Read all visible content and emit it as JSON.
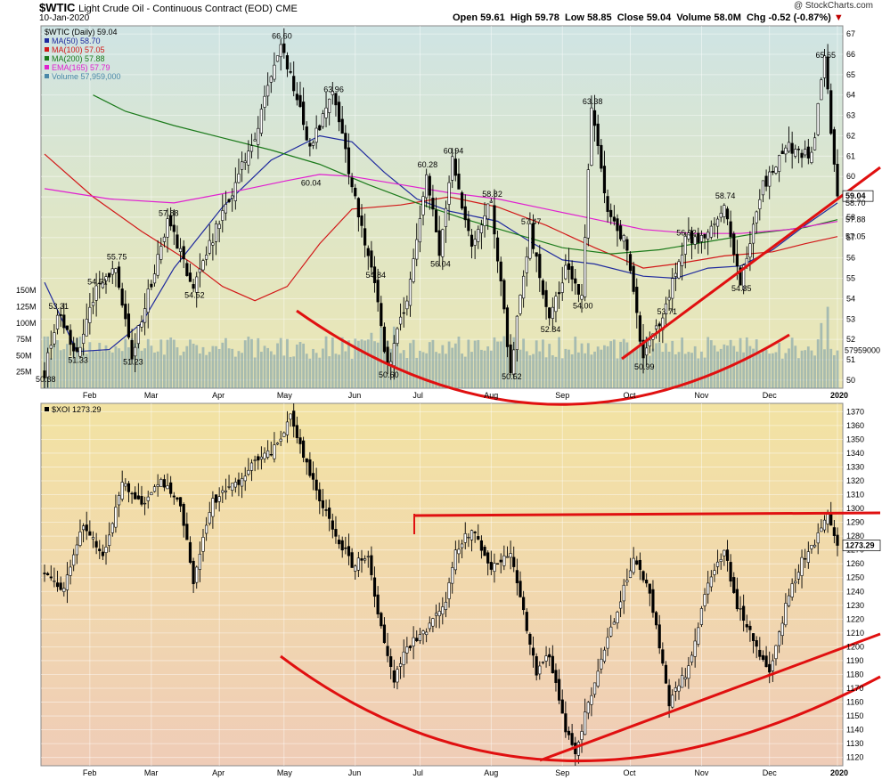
{
  "header": {
    "symbol": "$WTIC",
    "name": "Light Crude Oil - Continuous Contract (EOD)",
    "exchange": "CME",
    "date": "10-Jan-2020",
    "open": "Open 59.61",
    "high": "High 59.78",
    "low": "Low 58.85",
    "close": "Close 59.04",
    "volume": "Volume 58.0M",
    "chg": "Chg -0.52 (-0.87%)",
    "chg_marker": "▼",
    "brand": "@ StockCharts.com"
  },
  "chart_data": [
    {
      "type": "candlestick",
      "title": "$WTIC (Daily) 59.04",
      "legend": [
        {
          "text": "MA(50) 58.70",
          "color": "#1f2a9e"
        },
        {
          "text": "MA(100) 57.05",
          "color": "#d21919"
        },
        {
          "text": "MA(200) 57.88",
          "color": "#1b7a1b"
        },
        {
          "text": "EMA(165) 57.79",
          "color": "#e020d0"
        },
        {
          "text": "Volume 57,959,000",
          "color": "#4a88a8"
        }
      ],
      "x_ticks": [
        "Feb",
        "Mar",
        "Apr",
        "May",
        "Jun",
        "Jul",
        "Aug",
        "Sep",
        "Oct",
        "Nov",
        "Dec",
        "2020"
      ],
      "y_ticks": [
        50,
        51,
        52,
        53,
        54,
        55,
        56,
        57,
        58,
        59,
        60,
        61,
        62,
        63,
        64,
        65,
        66,
        67
      ],
      "ylim": [
        49.6,
        67.4
      ],
      "volume_ticks": [
        "25M",
        "50M",
        "75M",
        "100M",
        "125M",
        "150M"
      ],
      "volume_last": "57959000",
      "price_labels": [
        "50.38",
        "53.31",
        "54.51",
        "55.75",
        "51.33",
        "51.23",
        "57.88",
        "54.52",
        "66.60",
        "63.96",
        "60.04",
        "54.84",
        "50.60",
        "60.28",
        "60.94",
        "56.04",
        "58.82",
        "57.47",
        "50.52",
        "52.84",
        "54.00",
        "63.38",
        "50.99",
        "53.71",
        "56.92",
        "58.74",
        "54.85",
        "65.65"
      ],
      "right_labels": [
        "59.04",
        "58.70",
        "57.88",
        "57.05"
      ],
      "anchors": [
        {
          "idx": 0,
          "price": 50.38
        },
        {
          "idx": 4,
          "price": 53.31
        },
        {
          "idx": 10,
          "price": 51.33
        },
        {
          "idx": 16,
          "price": 54.51
        },
        {
          "idx": 22,
          "price": 55.75
        },
        {
          "idx": 27,
          "price": 51.23
        },
        {
          "idx": 38,
          "price": 57.88
        },
        {
          "idx": 46,
          "price": 54.52
        },
        {
          "idx": 55,
          "price": 58.2
        },
        {
          "idx": 65,
          "price": 62.0
        },
        {
          "idx": 73,
          "price": 66.6
        },
        {
          "idx": 82,
          "price": 61.5
        },
        {
          "idx": 89,
          "price": 63.96
        },
        {
          "idx": 96,
          "price": 59.0
        },
        {
          "idx": 102,
          "price": 54.84
        },
        {
          "idx": 106,
          "price": 50.6
        },
        {
          "idx": 112,
          "price": 54.0
        },
        {
          "idx": 118,
          "price": 60.28
        },
        {
          "idx": 122,
          "price": 56.04
        },
        {
          "idx": 126,
          "price": 60.94
        },
        {
          "idx": 132,
          "price": 56.5
        },
        {
          "idx": 138,
          "price": 58.82
        },
        {
          "idx": 144,
          "price": 50.52
        },
        {
          "idx": 150,
          "price": 57.47
        },
        {
          "idx": 156,
          "price": 53.0
        },
        {
          "idx": 161,
          "price": 55.5
        },
        {
          "idx": 166,
          "price": 54.0
        },
        {
          "idx": 169,
          "price": 63.38
        },
        {
          "idx": 174,
          "price": 58.5
        },
        {
          "idx": 180,
          "price": 56.5
        },
        {
          "idx": 185,
          "price": 50.99
        },
        {
          "idx": 192,
          "price": 53.71
        },
        {
          "idx": 198,
          "price": 56.92
        },
        {
          "idx": 205,
          "price": 57.0
        },
        {
          "idx": 210,
          "price": 58.74
        },
        {
          "idx": 215,
          "price": 54.85
        },
        {
          "idx": 222,
          "price": 59.5
        },
        {
          "idx": 230,
          "price": 61.5
        },
        {
          "idx": 237,
          "price": 61.0
        },
        {
          "idx": 241,
          "price": 65.65
        },
        {
          "idx": 245,
          "price": 59.04
        }
      ],
      "ma_series": [
        {
          "name": "MA(50)",
          "color": "#1f2a9e",
          "points": [
            [
              0,
              54.8
            ],
            [
              10,
              51.4
            ],
            [
              20,
              51.5
            ],
            [
              30,
              52.8
            ],
            [
              40,
              55.5
            ],
            [
              55,
              58.5
            ],
            [
              70,
              60.8
            ],
            [
              85,
              62.0
            ],
            [
              95,
              61.7
            ],
            [
              105,
              60.2
            ],
            [
              115,
              58.9
            ],
            [
              125,
              58.3
            ],
            [
              140,
              57.8
            ],
            [
              150,
              56.8
            ],
            [
              160,
              55.9
            ],
            [
              170,
              55.7
            ],
            [
              185,
              55.1
            ],
            [
              195,
              55.0
            ],
            [
              205,
              55.5
            ],
            [
              215,
              55.6
            ],
            [
              225,
              56.4
            ],
            [
              235,
              57.6
            ],
            [
              245,
              58.7
            ]
          ]
        },
        {
          "name": "MA(100)",
          "color": "#d21919",
          "points": [
            [
              0,
              61.1
            ],
            [
              15,
              59.0
            ],
            [
              30,
              57.3
            ],
            [
              45,
              55.8
            ],
            [
              55,
              54.6
            ],
            [
              65,
              53.9
            ],
            [
              75,
              54.6
            ],
            [
              85,
              56.7
            ],
            [
              95,
              58.4
            ],
            [
              110,
              58.6
            ],
            [
              125,
              59.0
            ],
            [
              140,
              58.5
            ],
            [
              155,
              57.6
            ],
            [
              170,
              56.5
            ],
            [
              185,
              55.5
            ],
            [
              195,
              55.7
            ],
            [
              210,
              56.1
            ],
            [
              225,
              56.3
            ],
            [
              235,
              56.7
            ],
            [
              245,
              57.05
            ]
          ]
        },
        {
          "name": "MA(200)",
          "color": "#1b7a1b",
          "points": [
            [
              15,
              64.0
            ],
            [
              25,
              63.2
            ],
            [
              40,
              62.5
            ],
            [
              55,
              61.9
            ],
            [
              70,
              61.3
            ],
            [
              85,
              60.6
            ],
            [
              100,
              59.6
            ],
            [
              115,
              58.7
            ],
            [
              130,
              57.9
            ],
            [
              145,
              57.2
            ],
            [
              160,
              56.5
            ],
            [
              175,
              56.2
            ],
            [
              190,
              56.4
            ],
            [
              205,
              56.8
            ],
            [
              220,
              57.2
            ],
            [
              235,
              57.5
            ],
            [
              245,
              57.88
            ]
          ]
        },
        {
          "name": "EMA(165)",
          "color": "#e020d0",
          "points": [
            [
              0,
              59.4
            ],
            [
              20,
              58.9
            ],
            [
              40,
              58.7
            ],
            [
              60,
              59.3
            ],
            [
              75,
              59.8
            ],
            [
              85,
              60.1
            ],
            [
              95,
              60.0
            ],
            [
              110,
              59.6
            ],
            [
              125,
              59.2
            ],
            [
              140,
              58.9
            ],
            [
              155,
              58.4
            ],
            [
              170,
              57.9
            ],
            [
              185,
              57.4
            ],
            [
              200,
              57.2
            ],
            [
              215,
              57.2
            ],
            [
              230,
              57.4
            ],
            [
              245,
              57.79
            ]
          ]
        }
      ]
    },
    {
      "type": "candlestick",
      "title": "$XOI 1273.29",
      "x_ticks": [
        "Feb",
        "Mar",
        "Apr",
        "May",
        "Jun",
        "Jul",
        "Aug",
        "Sep",
        "Oct",
        "Nov",
        "Dec",
        "2020"
      ],
      "y_ticks": [
        1120,
        1130,
        1140,
        1150,
        1160,
        1170,
        1180,
        1190,
        1200,
        1210,
        1220,
        1230,
        1240,
        1250,
        1260,
        1270,
        1280,
        1290,
        1300,
        1310,
        1320,
        1330,
        1340,
        1350,
        1360,
        1370
      ],
      "ylim": [
        1114,
        1376
      ],
      "right_labels": [
        "1273.29"
      ],
      "anchors": [
        {
          "idx": 0,
          "price": 1255
        },
        {
          "idx": 6,
          "price": 1242
        },
        {
          "idx": 12,
          "price": 1288
        },
        {
          "idx": 18,
          "price": 1265
        },
        {
          "idx": 24,
          "price": 1318
        },
        {
          "idx": 30,
          "price": 1302
        },
        {
          "idx": 36,
          "price": 1320
        },
        {
          "idx": 42,
          "price": 1303
        },
        {
          "idx": 46,
          "price": 1248
        },
        {
          "idx": 52,
          "price": 1305
        },
        {
          "idx": 60,
          "price": 1320
        },
        {
          "idx": 66,
          "price": 1335
        },
        {
          "idx": 72,
          "price": 1345
        },
        {
          "idx": 76,
          "price": 1368
        },
        {
          "idx": 82,
          "price": 1325
        },
        {
          "idx": 88,
          "price": 1290
        },
        {
          "idx": 95,
          "price": 1260
        },
        {
          "idx": 100,
          "price": 1265
        },
        {
          "idx": 103,
          "price": 1225
        },
        {
          "idx": 108,
          "price": 1175
        },
        {
          "idx": 112,
          "price": 1200
        },
        {
          "idx": 118,
          "price": 1212
        },
        {
          "idx": 124,
          "price": 1235
        },
        {
          "idx": 127,
          "price": 1270
        },
        {
          "idx": 132,
          "price": 1285
        },
        {
          "idx": 138,
          "price": 1255
        },
        {
          "idx": 144,
          "price": 1270
        },
        {
          "idx": 148,
          "price": 1225
        },
        {
          "idx": 152,
          "price": 1180
        },
        {
          "idx": 156,
          "price": 1195
        },
        {
          "idx": 161,
          "price": 1140
        },
        {
          "idx": 164,
          "price": 1125
        },
        {
          "idx": 170,
          "price": 1175
        },
        {
          "idx": 176,
          "price": 1220
        },
        {
          "idx": 182,
          "price": 1265
        },
        {
          "idx": 187,
          "price": 1240
        },
        {
          "idx": 193,
          "price": 1160
        },
        {
          "idx": 199,
          "price": 1185
        },
        {
          "idx": 205,
          "price": 1245
        },
        {
          "idx": 210,
          "price": 1270
        },
        {
          "idx": 214,
          "price": 1230
        },
        {
          "idx": 219,
          "price": 1205
        },
        {
          "idx": 224,
          "price": 1180
        },
        {
          "idx": 229,
          "price": 1230
        },
        {
          "idx": 234,
          "price": 1262
        },
        {
          "idx": 239,
          "price": 1280
        },
        {
          "idx": 242,
          "price": 1295
        },
        {
          "idx": 245,
          "price": 1273.29
        }
      ]
    }
  ],
  "colors": {
    "bull_candle": "#ffffff",
    "bear_candle": "#000000",
    "trendline": "#e01010",
    "volume_bar": "#6f98a9"
  }
}
